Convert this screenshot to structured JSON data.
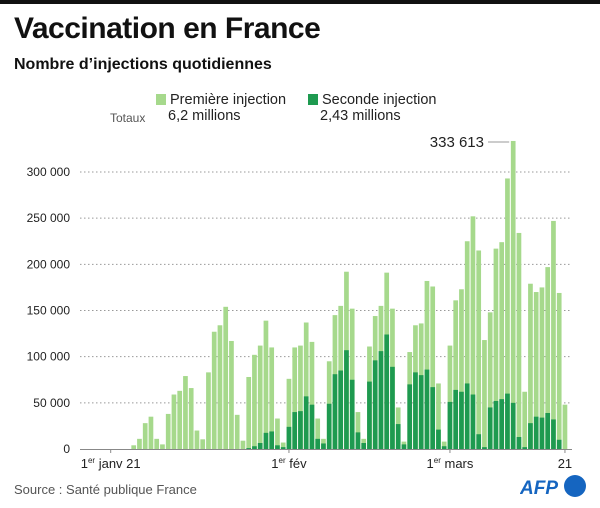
{
  "header": {
    "title": "Vaccination en France",
    "subtitle": "Nombre d’injections quotidiennes"
  },
  "legend": {
    "totals_label": "Totaux",
    "first_label": "Première injection",
    "first_total": "6,2 millions",
    "second_label": "Seconde injection",
    "second_total": "2,43 millions"
  },
  "footer": {
    "source": "Source : Santé publique France",
    "logo": "AFP"
  },
  "colors": {
    "first": "#a6d98c",
    "second": "#1e9a50",
    "grid": "#999999"
  },
  "chart_data": {
    "type": "bar",
    "stacked": true,
    "title": "Vaccination en France",
    "subtitle": "Nombre d’injections quotidiennes",
    "xlabel": "",
    "ylabel": "",
    "ylim": [
      0,
      340000
    ],
    "yticks": [
      0,
      50000,
      100000,
      150000,
      200000,
      250000,
      300000
    ],
    "ytick_labels": [
      "0",
      "50 000",
      "100 000",
      "150 000",
      "200 000",
      "250 000",
      "300 000"
    ],
    "xticks": [
      {
        "date": "2021-01-01",
        "label": "1er janv 21",
        "sup": "er",
        "pre": "1",
        "post": " janv 21"
      },
      {
        "date": "2021-02-01",
        "pre": "1",
        "sup": "er",
        "post": " fév"
      },
      {
        "date": "2021-03-01",
        "pre": "1",
        "sup": "er",
        "post": " mars"
      },
      {
        "date": "2021-03-21",
        "pre": "21",
        "sup": "",
        "post": ""
      }
    ],
    "grid": "horizontal dotted",
    "legend_position": "top",
    "annotation": {
      "date": "2021-03-12",
      "text": "333 613"
    },
    "x": [
      "2021-01-01",
      "2021-01-02",
      "2021-01-03",
      "2021-01-04",
      "2021-01-05",
      "2021-01-06",
      "2021-01-07",
      "2021-01-08",
      "2021-01-09",
      "2021-01-10",
      "2021-01-11",
      "2021-01-12",
      "2021-01-13",
      "2021-01-14",
      "2021-01-15",
      "2021-01-16",
      "2021-01-17",
      "2021-01-18",
      "2021-01-19",
      "2021-01-20",
      "2021-01-21",
      "2021-01-22",
      "2021-01-23",
      "2021-01-24",
      "2021-01-25",
      "2021-01-26",
      "2021-01-27",
      "2021-01-28",
      "2021-01-29",
      "2021-01-30",
      "2021-01-31",
      "2021-02-01",
      "2021-02-02",
      "2021-02-03",
      "2021-02-04",
      "2021-02-05",
      "2021-02-06",
      "2021-02-07",
      "2021-02-08",
      "2021-02-09",
      "2021-02-10",
      "2021-02-11",
      "2021-02-12",
      "2021-02-13",
      "2021-02-14",
      "2021-02-15",
      "2021-02-16",
      "2021-02-17",
      "2021-02-18",
      "2021-02-19",
      "2021-02-20",
      "2021-02-21",
      "2021-02-22",
      "2021-02-23",
      "2021-02-24",
      "2021-02-25",
      "2021-02-26",
      "2021-02-27",
      "2021-02-28",
      "2021-03-01",
      "2021-03-02",
      "2021-03-03",
      "2021-03-04",
      "2021-03-05",
      "2021-03-06",
      "2021-03-07",
      "2021-03-08",
      "2021-03-09",
      "2021-03-10",
      "2021-03-11",
      "2021-03-12",
      "2021-03-13",
      "2021-03-14",
      "2021-03-15",
      "2021-03-16",
      "2021-03-17",
      "2021-03-18",
      "2021-03-19",
      "2021-03-20",
      "2021-03-21"
    ],
    "series": [
      {
        "name": "Première injection",
        "values": [
          0,
          0,
          0,
          0,
          4000,
          11000,
          28000,
          35000,
          11000,
          5000,
          38000,
          59000,
          63000,
          79000,
          66000,
          20000,
          10500,
          83000,
          127000,
          134000,
          154000,
          117000,
          37000,
          9000,
          77000,
          99000,
          105500,
          121500,
          91000,
          29000,
          5000,
          52000,
          70000,
          71000,
          80000,
          68000,
          22000,
          5000,
          46000,
          64000,
          70000,
          85000,
          77000,
          22000,
          4500,
          38000,
          48000,
          49000,
          67000,
          63000,
          18000,
          3000,
          35000,
          51000,
          56000,
          96000,
          109000,
          50000,
          5000,
          61000,
          97000,
          111000,
          154000,
          193000,
          199000,
          116000,
          103000,
          165000,
          170000,
          233000,
          283613,
          221000,
          60000,
          151000,
          135000,
          141000,
          158000,
          215000,
          159000,
          48000
        ]
      },
      {
        "name": "Seconde injection",
        "values": [
          0,
          0,
          0,
          0,
          0,
          0,
          0,
          0,
          0,
          0,
          0,
          0,
          0,
          0,
          0,
          0,
          0,
          0,
          0,
          0,
          0,
          0,
          0,
          0,
          1000,
          3000,
          6500,
          17500,
          19000,
          4000,
          2000,
          24000,
          40000,
          41000,
          57000,
          48000,
          11000,
          6000,
          49000,
          81000,
          85000,
          107000,
          75000,
          18000,
          6500,
          73000,
          96000,
          106000,
          124000,
          89000,
          27000,
          5000,
          70000,
          83000,
          80000,
          86000,
          67000,
          21000,
          3000,
          51000,
          64000,
          62000,
          71000,
          59000,
          16000,
          2000,
          45000,
          52000,
          54000,
          60000,
          50000,
          13000,
          2000,
          28000,
          35000,
          34000,
          39000,
          32000,
          10000,
          0
        ]
      }
    ]
  }
}
